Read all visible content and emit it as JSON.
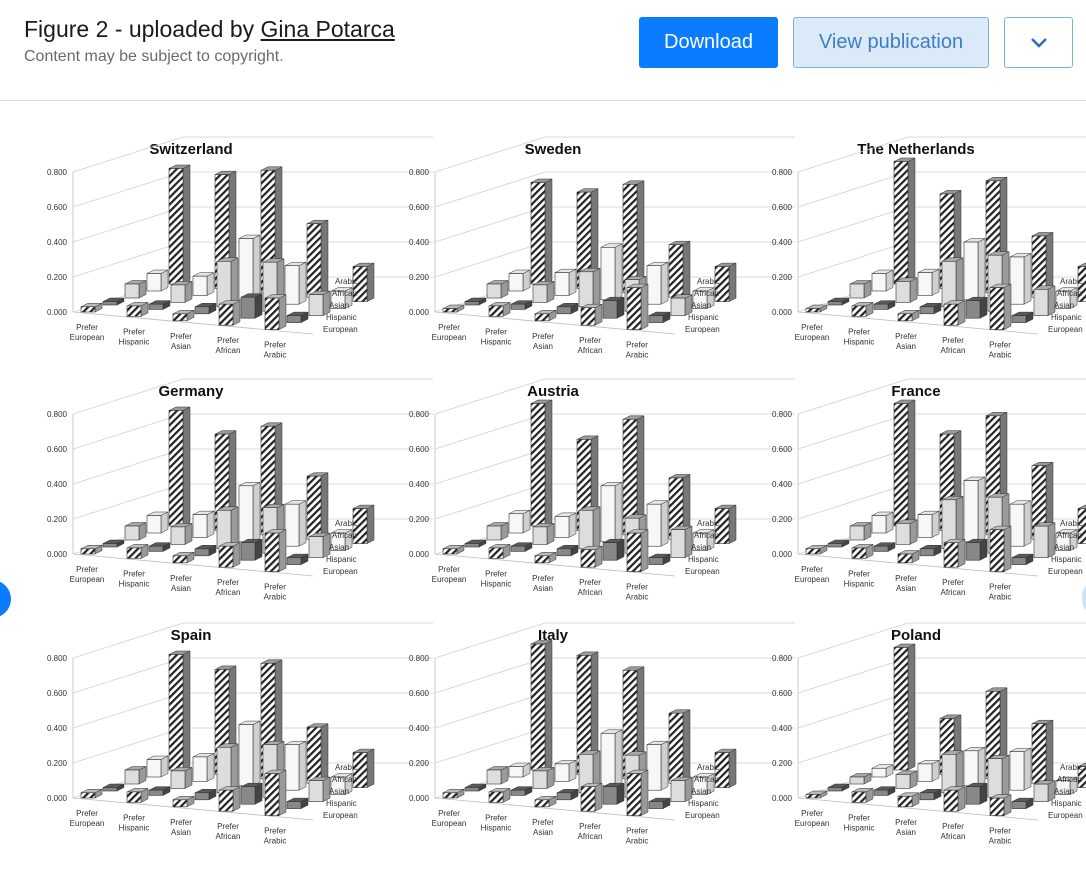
{
  "header": {
    "title_prefix": "Figure 2 - uploaded by ",
    "author": "Gina Potarca",
    "subtitle": "Content may be subject to copyright.",
    "download_label": "Download",
    "view_label": "View publication",
    "more_icon": "chevron-down-icon"
  },
  "colors": {
    "accent": "#0a7cff",
    "secondary_bg": "#dbeaf8",
    "secondary_text": "#3b7fc4"
  },
  "chart_data": [
    {
      "type": "bar",
      "title": "Switzerland",
      "ylim": [
        0,
        0.8
      ],
      "yticks": [
        "0.800",
        "0.600",
        "0.400",
        "0.200",
        "0.000"
      ],
      "categories": [
        "Prefer European",
        "Prefer Hispanic",
        "Prefer Asian",
        "Prefer African",
        "Prefer Arabic"
      ],
      "series_names": [
        "Arabic",
        "African",
        "Asian",
        "Hispanic",
        "European"
      ],
      "values": [
        [
          0.66,
          0.1,
          0.08,
          0.02,
          0.03
        ],
        [
          0.65,
          0.11,
          0.1,
          0.03,
          0.06
        ],
        [
          0.7,
          0.35,
          0.26,
          0.04,
          0.04
        ],
        [
          0.42,
          0.22,
          0.28,
          0.12,
          0.12
        ],
        [
          0.2,
          0.1,
          0.12,
          0.04,
          0.18
        ]
      ]
    },
    {
      "type": "bar",
      "title": "Sweden",
      "ylim": [
        0,
        0.8
      ],
      "yticks": [
        "0.800",
        "0.600",
        "0.400",
        "0.200",
        "0.000"
      ],
      "categories": [
        "Prefer European",
        "Prefer Hispanic",
        "Prefer Asian",
        "Prefer African",
        "Prefer Arabic"
      ],
      "series_names": [
        "Arabic",
        "African",
        "Asian",
        "Hispanic",
        "European"
      ],
      "values": [
        [
          0.58,
          0.1,
          0.08,
          0.02,
          0.02
        ],
        [
          0.55,
          0.13,
          0.1,
          0.03,
          0.06
        ],
        [
          0.62,
          0.3,
          0.2,
          0.04,
          0.04
        ],
        [
          0.3,
          0.22,
          0.18,
          0.1,
          0.1
        ],
        [
          0.2,
          0.1,
          0.1,
          0.04,
          0.24
        ]
      ]
    },
    {
      "type": "bar",
      "title": "The Netherlands",
      "ylim": [
        0,
        0.8
      ],
      "yticks": [
        "0.800",
        "0.600",
        "0.400",
        "0.200",
        "0.000"
      ],
      "categories": [
        "Prefer European",
        "Prefer Hispanic",
        "Prefer Asian",
        "Prefer African",
        "Prefer Arabic"
      ],
      "series_names": [
        "Arabic",
        "African",
        "Asian",
        "Hispanic",
        "European"
      ],
      "values": [
        [
          0.7,
          0.1,
          0.08,
          0.02,
          0.02
        ],
        [
          0.54,
          0.13,
          0.12,
          0.03,
          0.06
        ],
        [
          0.64,
          0.33,
          0.26,
          0.04,
          0.04
        ],
        [
          0.35,
          0.27,
          0.32,
          0.1,
          0.12
        ],
        [
          0.2,
          0.1,
          0.15,
          0.04,
          0.24
        ]
      ]
    },
    {
      "type": "bar",
      "title": "Germany",
      "ylim": [
        0,
        0.8
      ],
      "yticks": [
        "0.800",
        "0.600",
        "0.400",
        "0.200",
        "0.000"
      ],
      "categories": [
        "Prefer European",
        "Prefer Hispanic",
        "Prefer Asian",
        "Prefer African",
        "Prefer Arabic"
      ],
      "series_names": [
        "Arabic",
        "African",
        "Asian",
        "Hispanic",
        "European"
      ],
      "values": [
        [
          0.66,
          0.1,
          0.08,
          0.02,
          0.03
        ],
        [
          0.55,
          0.13,
          0.1,
          0.03,
          0.06
        ],
        [
          0.62,
          0.32,
          0.22,
          0.04,
          0.04
        ],
        [
          0.36,
          0.24,
          0.26,
          0.1,
          0.12
        ],
        [
          0.2,
          0.1,
          0.12,
          0.04,
          0.22
        ]
      ]
    },
    {
      "type": "bar",
      "title": "Austria",
      "ylim": [
        0,
        0.8
      ],
      "yticks": [
        "0.800",
        "0.600",
        "0.400",
        "0.200",
        "0.000"
      ],
      "categories": [
        "Prefer European",
        "Prefer Hispanic",
        "Prefer Asian",
        "Prefer African",
        "Prefer Arabic"
      ],
      "series_names": [
        "Arabic",
        "African",
        "Asian",
        "Hispanic",
        "European"
      ],
      "values": [
        [
          0.7,
          0.11,
          0.08,
          0.02,
          0.03
        ],
        [
          0.52,
          0.12,
          0.1,
          0.03,
          0.06
        ],
        [
          0.66,
          0.32,
          0.22,
          0.04,
          0.04
        ],
        [
          0.35,
          0.24,
          0.2,
          0.1,
          0.1
        ],
        [
          0.2,
          0.1,
          0.16,
          0.04,
          0.22
        ]
      ]
    },
    {
      "type": "bar",
      "title": "France",
      "ylim": [
        0,
        0.8
      ],
      "yticks": [
        "0.800",
        "0.600",
        "0.400",
        "0.200",
        "0.000"
      ],
      "categories": [
        "Prefer European",
        "Prefer Hispanic",
        "Prefer Asian",
        "Prefer African",
        "Prefer Arabic"
      ],
      "series_names": [
        "Arabic",
        "African",
        "Asian",
        "Hispanic",
        "European"
      ],
      "values": [
        [
          0.7,
          0.1,
          0.08,
          0.02,
          0.03
        ],
        [
          0.55,
          0.13,
          0.12,
          0.03,
          0.06
        ],
        [
          0.68,
          0.35,
          0.28,
          0.04,
          0.05
        ],
        [
          0.42,
          0.24,
          0.32,
          0.1,
          0.14
        ],
        [
          0.2,
          0.1,
          0.18,
          0.04,
          0.24
        ]
      ]
    },
    {
      "type": "bar",
      "title": "Spain",
      "ylim": [
        0,
        0.8
      ],
      "yticks": [
        "0.800",
        "0.600",
        "0.400",
        "0.200",
        "0.000"
      ],
      "categories": [
        "Prefer European",
        "Prefer Hispanic",
        "Prefer Asian",
        "Prefer African",
        "Prefer Arabic"
      ],
      "series_names": [
        "Arabic",
        "African",
        "Asian",
        "Hispanic",
        "European"
      ],
      "values": [
        [
          0.66,
          0.1,
          0.08,
          0.02,
          0.03
        ],
        [
          0.6,
          0.14,
          0.1,
          0.03,
          0.06
        ],
        [
          0.66,
          0.35,
          0.26,
          0.04,
          0.04
        ],
        [
          0.32,
          0.26,
          0.3,
          0.1,
          0.12
        ],
        [
          0.2,
          0.1,
          0.12,
          0.04,
          0.24
        ]
      ]
    },
    {
      "type": "bar",
      "title": "Italy",
      "ylim": [
        0,
        0.8
      ],
      "yticks": [
        "0.800",
        "0.600",
        "0.400",
        "0.200",
        "0.000"
      ],
      "categories": [
        "Prefer European",
        "Prefer Hispanic",
        "Prefer Asian",
        "Prefer African",
        "Prefer Arabic"
      ],
      "series_names": [
        "Arabic",
        "African",
        "Asian",
        "Hispanic",
        "European"
      ],
      "values": [
        [
          0.72,
          0.06,
          0.08,
          0.02,
          0.03
        ],
        [
          0.68,
          0.1,
          0.1,
          0.03,
          0.06
        ],
        [
          0.62,
          0.3,
          0.22,
          0.04,
          0.04
        ],
        [
          0.4,
          0.26,
          0.24,
          0.1,
          0.14
        ],
        [
          0.2,
          0.1,
          0.12,
          0.04,
          0.24
        ]
      ]
    },
    {
      "type": "bar",
      "title": "Poland",
      "ylim": [
        0,
        0.8
      ],
      "yticks": [
        "0.800",
        "0.600",
        "0.400",
        "0.200",
        "0.000"
      ],
      "categories": [
        "Prefer European",
        "Prefer Hispanic",
        "Prefer Asian",
        "Prefer African",
        "Prefer Arabic"
      ],
      "series_names": [
        "Arabic",
        "African",
        "Asian",
        "Hispanic",
        "European"
      ],
      "values": [
        [
          0.7,
          0.05,
          0.04,
          0.02,
          0.02
        ],
        [
          0.32,
          0.1,
          0.08,
          0.03,
          0.06
        ],
        [
          0.5,
          0.2,
          0.22,
          0.04,
          0.06
        ],
        [
          0.34,
          0.22,
          0.22,
          0.1,
          0.12
        ],
        [
          0.12,
          0.08,
          0.1,
          0.04,
          0.1
        ]
      ]
    }
  ]
}
